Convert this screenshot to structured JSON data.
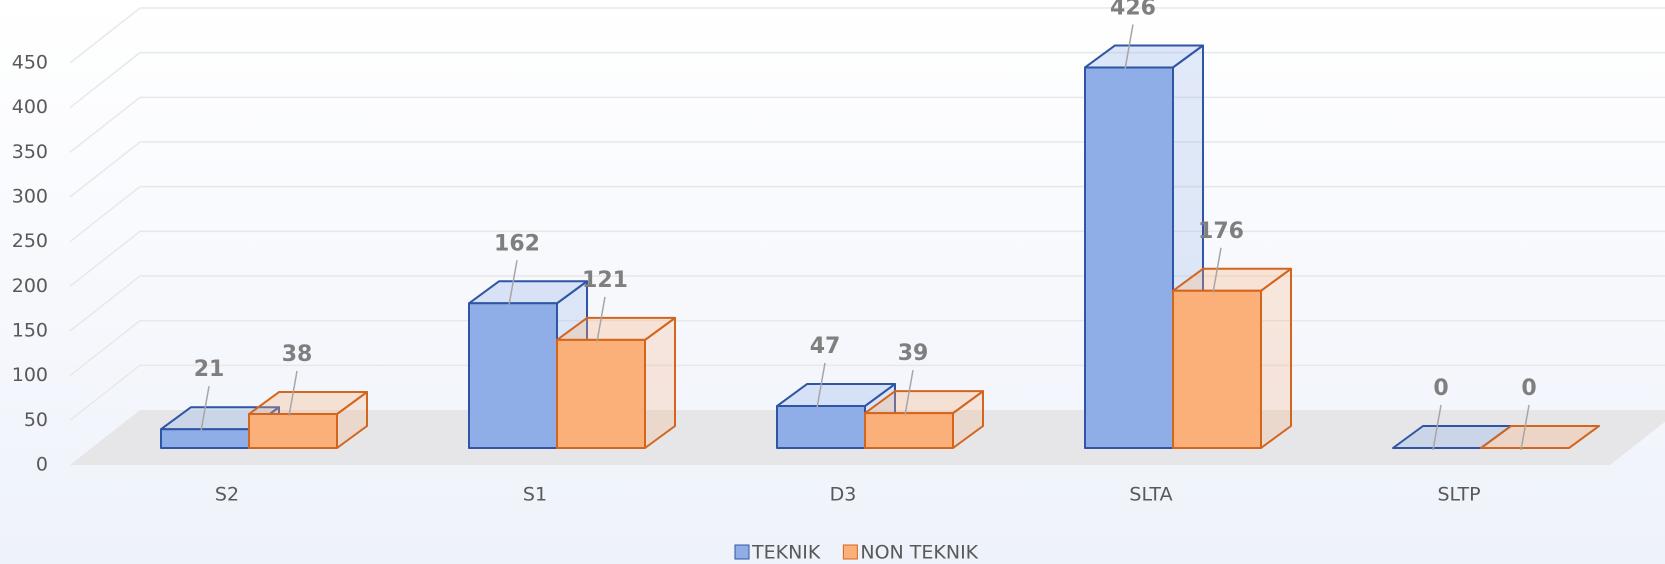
{
  "chart_data": {
    "type": "bar3d",
    "categories": [
      "S2",
      "S1",
      "D3",
      "SLTA",
      "SLTP"
    ],
    "series": [
      {
        "name": "TEKNIK",
        "color": "#8faee8",
        "stroke": "#2f55a4",
        "values": [
          21,
          162,
          47,
          426,
          0
        ]
      },
      {
        "name": "NON TEKNIK",
        "color": "#fbb07a",
        "stroke": "#d3651c",
        "values": [
          38,
          121,
          39,
          176,
          0
        ]
      }
    ],
    "ylim": [
      0,
      450
    ],
    "yticks": [
      0,
      50,
      100,
      150,
      200,
      250,
      300,
      350,
      400,
      450
    ],
    "grid": true,
    "legend": "bottom"
  }
}
